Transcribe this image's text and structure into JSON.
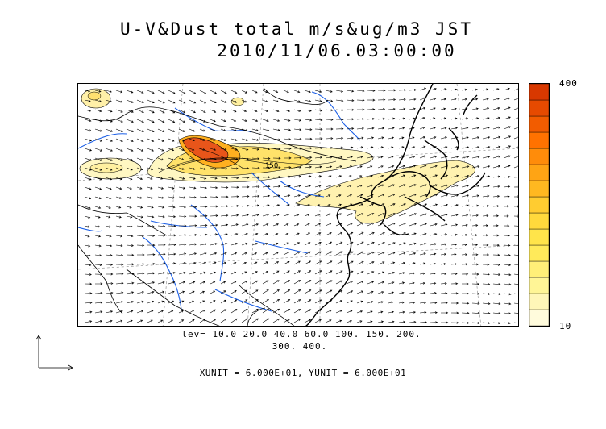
{
  "title": {
    "line1": "U-V&Dust total m/s&ug/m3 JST",
    "line2": "2010/11/06.03:00:00"
  },
  "colorbar": {
    "max_label": "400",
    "min_label": "10",
    "colors": [
      "#fffbdc",
      "#fff6b8",
      "#fff596",
      "#ffef78",
      "#ffea5a",
      "#ffe44a",
      "#ffd93c",
      "#ffcc30",
      "#ffb820",
      "#ffa414",
      "#ff8c0a",
      "#ff7200",
      "#f25c00",
      "#e64a00",
      "#d83800"
    ]
  },
  "contour_levels": {
    "line1": "lev= 10.0 20.0 40.0 60.0 100. 150. 200.",
    "line2": "300. 400."
  },
  "units": "XUNIT = 6.000E+01, YUNIT = 6.000E+01",
  "contour_label": "150",
  "colors": {
    "coastline": "#000000",
    "rivers": "#1a5ee6",
    "dust_low": "#fff7c2",
    "dust_high": "#e8551a"
  },
  "icons": [
    "reference-vector-arrows"
  ]
}
